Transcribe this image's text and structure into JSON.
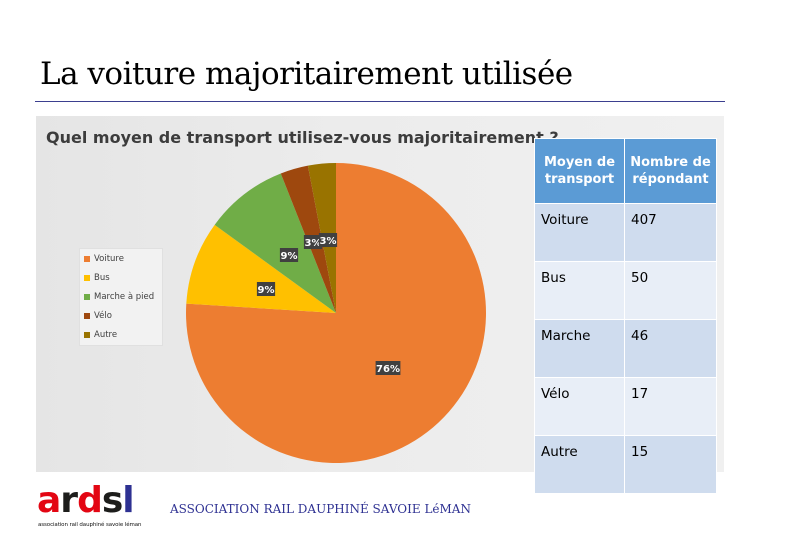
{
  "slide": {
    "title": "La voiture majoritairement utilisée"
  },
  "chart_data": {
    "type": "pie",
    "title": "Quel moyen de transport utilisez-vous majoritairement ?",
    "legend_position": "left",
    "slices": [
      {
        "name": "Voiture",
        "value": 76,
        "label": "76%",
        "color": "#ed7d31"
      },
      {
        "name": "Bus",
        "value": 9,
        "label": "9%",
        "color": "#ffc000"
      },
      {
        "name": "Marche à pied",
        "value": 9,
        "label": "9%",
        "color": "#70ad47"
      },
      {
        "name": "Vélo",
        "value": 3,
        "label": "3%",
        "color": "#9e480e"
      },
      {
        "name": "Autre",
        "value": 3,
        "label": "3%",
        "color": "#997300"
      }
    ]
  },
  "table": {
    "headers": [
      "Moyen de transport",
      "Nombre de répondant"
    ],
    "rows": [
      [
        "Voiture",
        "407"
      ],
      [
        "Bus",
        "50"
      ],
      [
        "Marche",
        "46"
      ],
      [
        "Vélo",
        "17"
      ],
      [
        "Autre",
        "15"
      ]
    ]
  },
  "footer": {
    "logo_letters": [
      "a",
      "r",
      "d",
      "s",
      "l"
    ],
    "logo_colors": [
      "#e30613",
      "#1d1d1b",
      "#e30613",
      "#1d1d1b",
      "#2e3192"
    ],
    "logo_tagline": "association rail dauphiné savoie léman",
    "organization": "ASSOCIATION RAIL DAUPHINÉ SAVOIE LéMAN"
  }
}
